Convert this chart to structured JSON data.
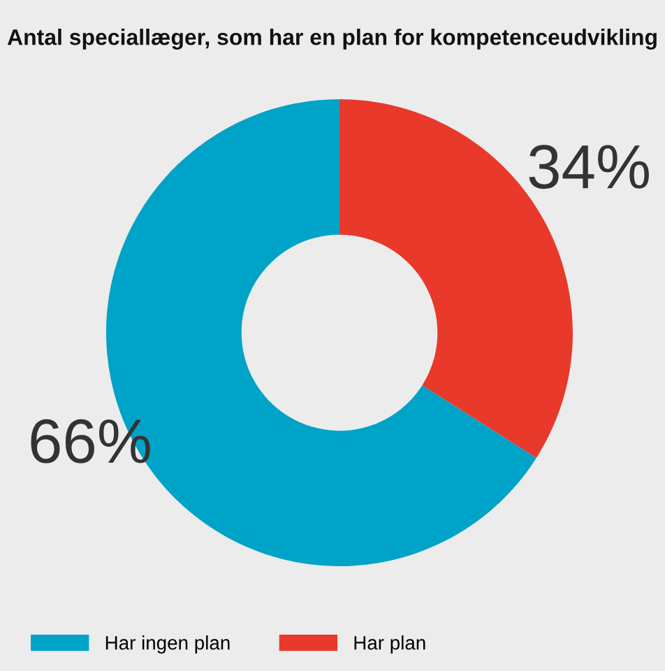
{
  "chart_data": {
    "type": "donut",
    "title": "Antal speciallæger, som har en plan for kompetenceudvikling",
    "categories": [
      "Har ingen plan",
      "Har plan"
    ],
    "values": [
      66,
      34
    ],
    "colors": [
      "#00a3c8",
      "#e8392b"
    ],
    "value_labels": [
      "66%",
      "34%"
    ],
    "legend": "bottom left"
  }
}
